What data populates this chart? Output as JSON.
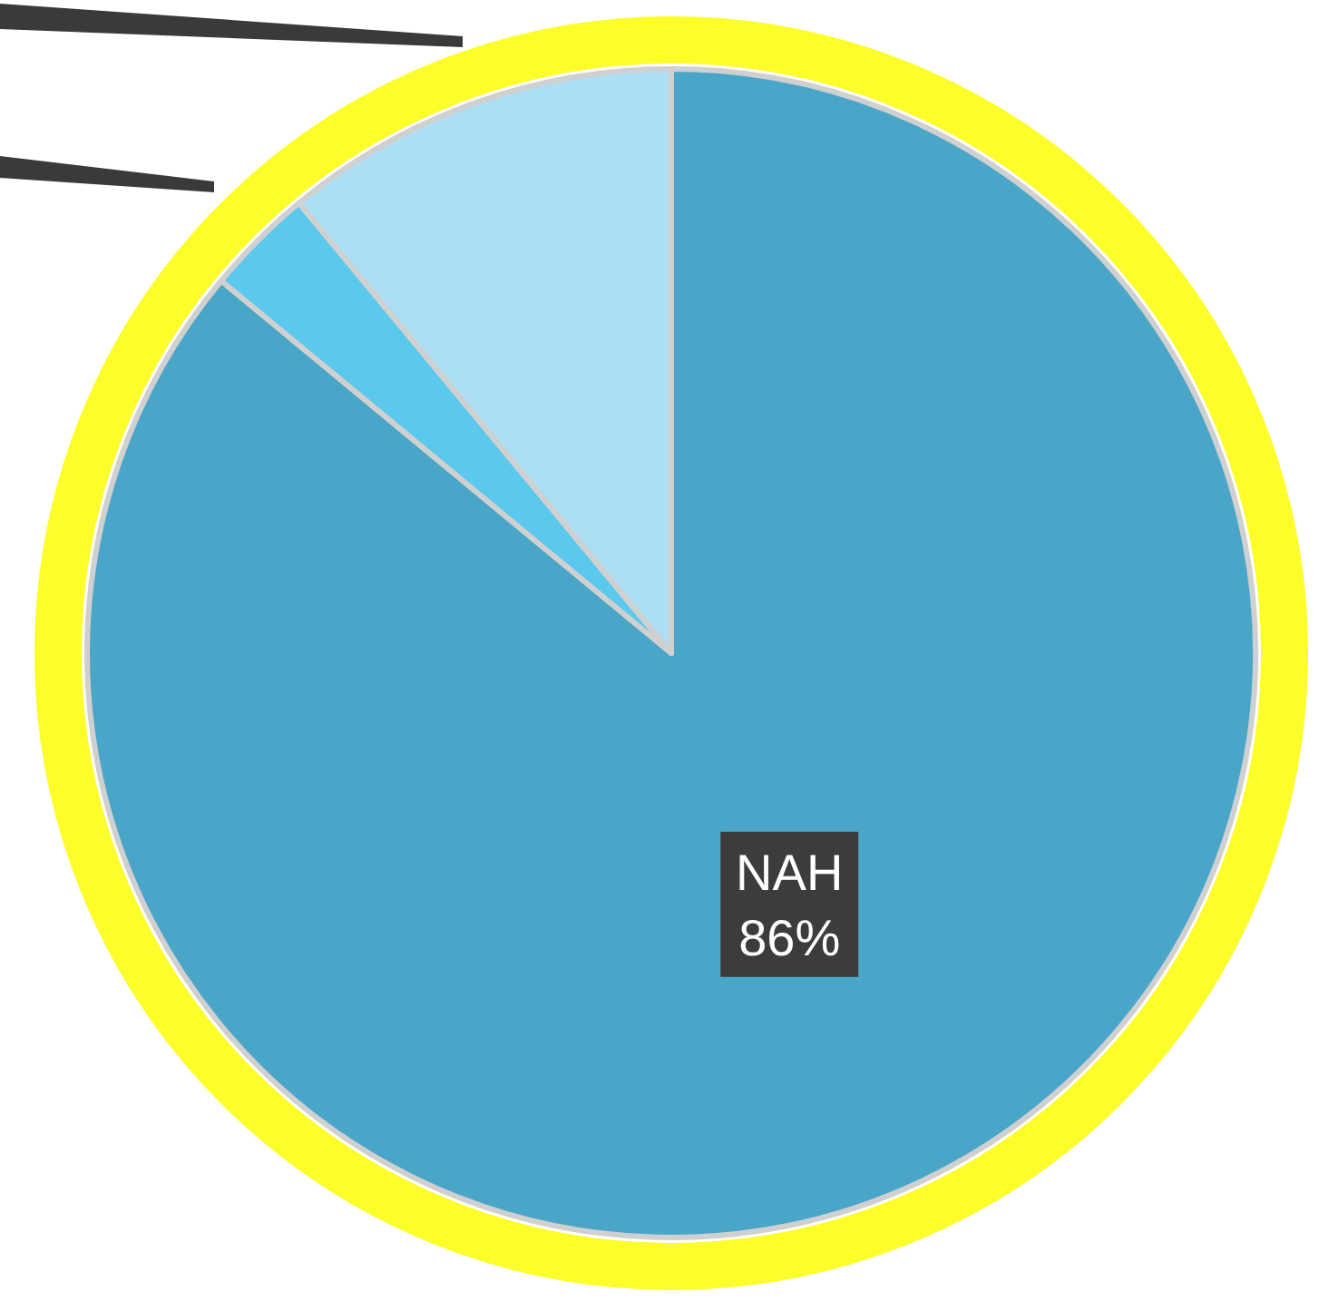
{
  "chart_data": {
    "type": "pie",
    "categories": [
      "NAH",
      null,
      null
    ],
    "values": [
      86,
      3,
      11
    ],
    "colors": [
      "#49a6c8",
      "#5bc8ee",
      "#acdff4"
    ],
    "value_labels": [
      "86%",
      null,
      null
    ]
  }
}
